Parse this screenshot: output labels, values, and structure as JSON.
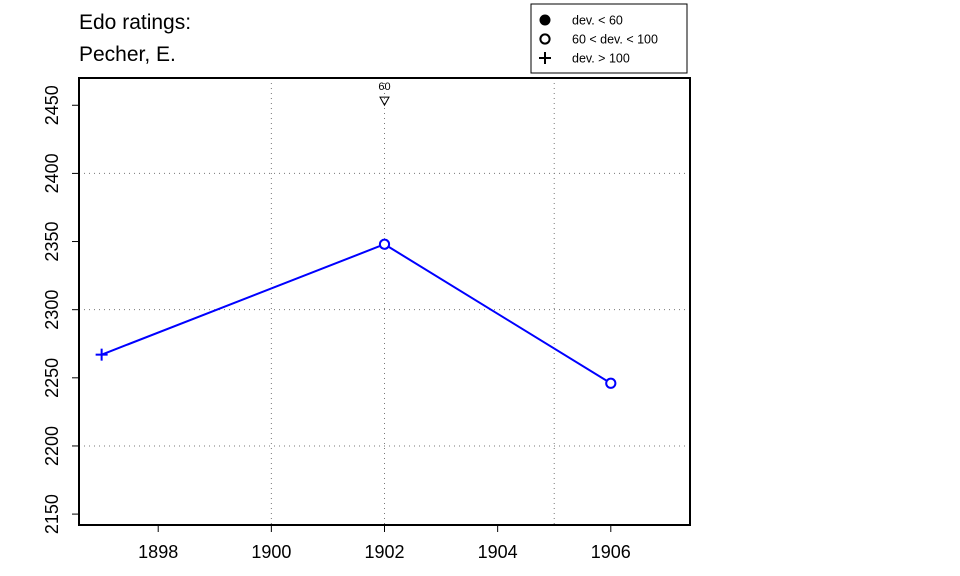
{
  "chart_data": {
    "type": "line",
    "title_lines": [
      "Edo ratings:",
      "Pecher, E."
    ],
    "xlabel": "",
    "ylabel": "",
    "xlim": [
      1896.6,
      1907.4
    ],
    "ylim": [
      2142,
      2470
    ],
    "x_ticks": [
      1898,
      1900,
      1902,
      1904,
      1906
    ],
    "y_ticks": [
      2150,
      2200,
      2250,
      2300,
      2350,
      2400,
      2450
    ],
    "x_grid": [
      1900,
      1902,
      1905
    ],
    "y_grid": [
      2200,
      2300,
      2400
    ],
    "grid": true,
    "line_color": "#0000ff",
    "series": [
      {
        "points": [
          {
            "x": 1897,
            "y": 2267,
            "marker": "plus"
          },
          {
            "x": 1902,
            "y": 2348,
            "marker": "circle-open"
          },
          {
            "x": 1906,
            "y": 2246,
            "marker": "circle-open"
          }
        ]
      }
    ],
    "annotations": [
      {
        "x": 1902,
        "y": 2453,
        "text": "60",
        "marker": "triangle-down-open"
      }
    ],
    "legend": {
      "position": "top-right-outside",
      "entries": [
        {
          "marker": "circle-filled",
          "label": "dev. < 60"
        },
        {
          "marker": "circle-open",
          "label": "60 < dev. < 100"
        },
        {
          "marker": "plus",
          "label": "dev. > 100"
        }
      ]
    }
  }
}
